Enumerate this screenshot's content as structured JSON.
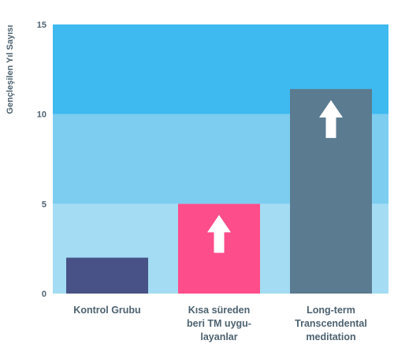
{
  "chart_data": {
    "type": "bar",
    "categories": [
      [
        "Kontrol Grubu"
      ],
      [
        "Kısa süreden",
        "beri TM uygu-",
        "layanlar"
      ],
      [
        "Long-term",
        "Transcendental",
        "meditation"
      ]
    ],
    "values": [
      2,
      5,
      11.4
    ],
    "bar_colors": [
      "#485286",
      "#fd4d8b",
      "#5a7b90"
    ],
    "arrows": [
      false,
      true,
      true
    ],
    "ylabel": "Gençleşilen Yıl Sayısı",
    "ylim": [
      0,
      15
    ],
    "yticks": [
      0,
      5,
      10,
      15
    ],
    "bands": [
      {
        "from": 0,
        "to": 5,
        "color": "#a3dcf3"
      },
      {
        "from": 5,
        "to": 10,
        "color": "#7dcdf1"
      },
      {
        "from": 10,
        "to": 15,
        "color": "#3fbaf0"
      }
    ],
    "grid": false,
    "legend": "none"
  }
}
